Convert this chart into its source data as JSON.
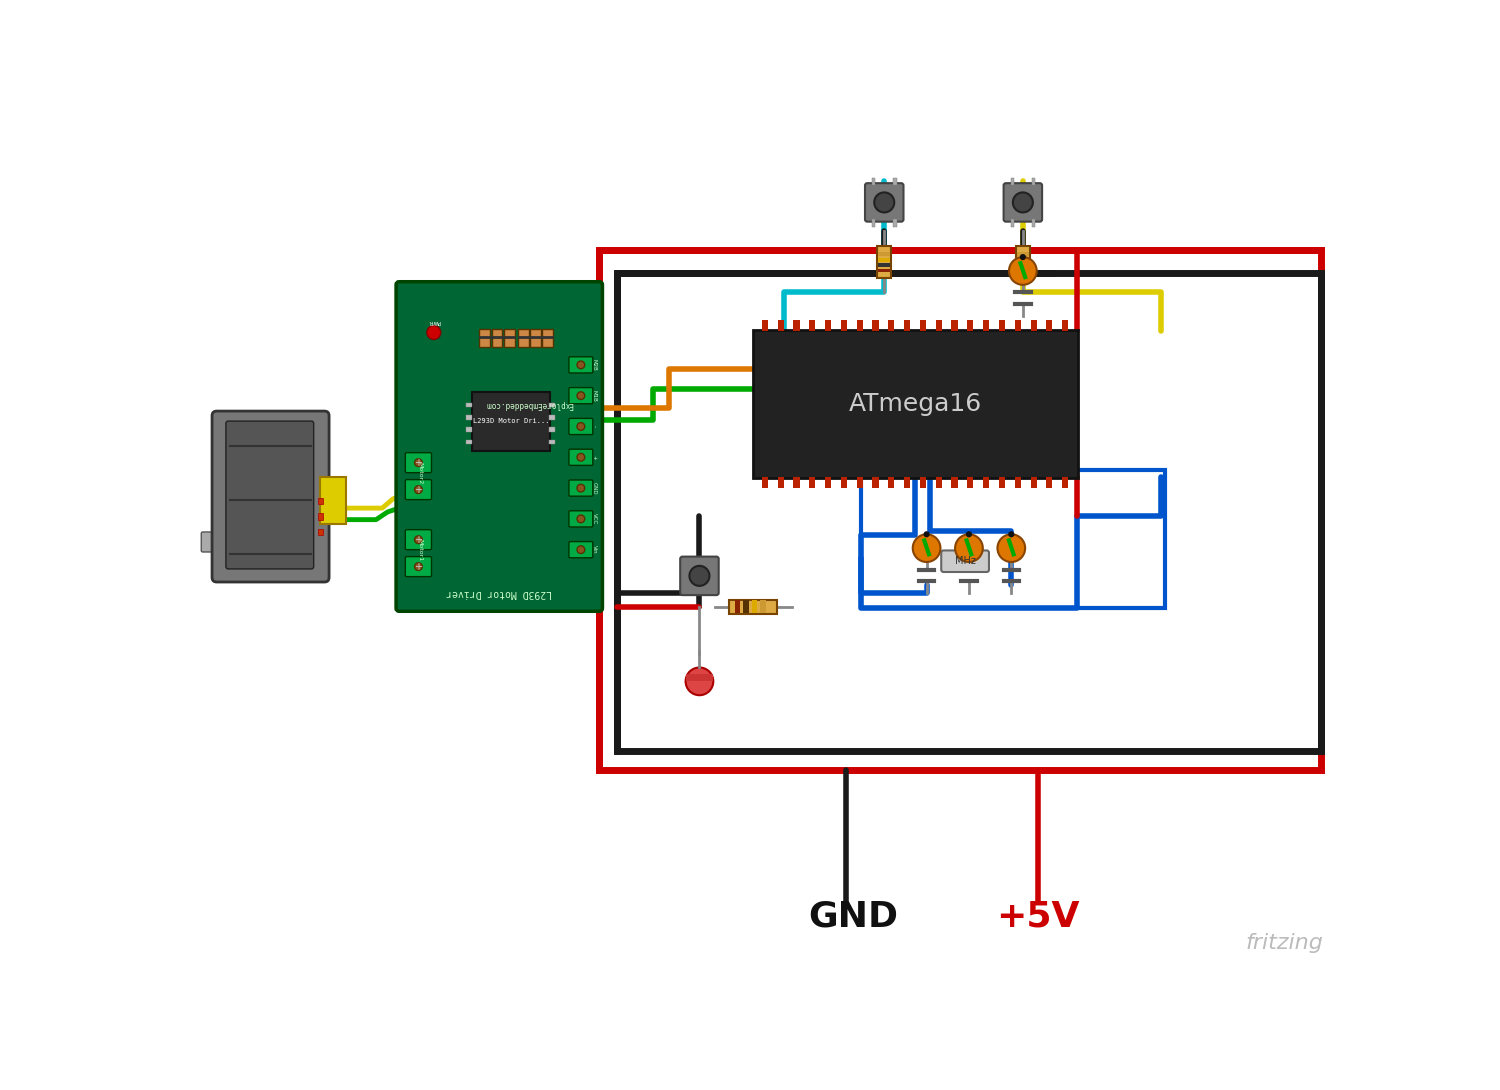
{
  "bg_color": "#ffffff",
  "figsize": [
    15.0,
    10.9
  ],
  "dpi": 100,
  "gnd_label": "GND",
  "plus5v_label": "+5V",
  "fritzing_label": "fritzing",
  "atmega_label": "ATmega16",
  "mhz_label": "MHz",
  "wire_colors": {
    "red": "#cc0000",
    "black": "#1a1a1a",
    "green": "#00aa00",
    "yellow": "#ddcc00",
    "blue": "#0055cc",
    "cyan": "#00bbcc",
    "orange": "#dd7700",
    "gray": "#888888"
  },
  "lw": 4.0,
  "lw_thin": 2.0,
  "lw_thick": 5.0
}
